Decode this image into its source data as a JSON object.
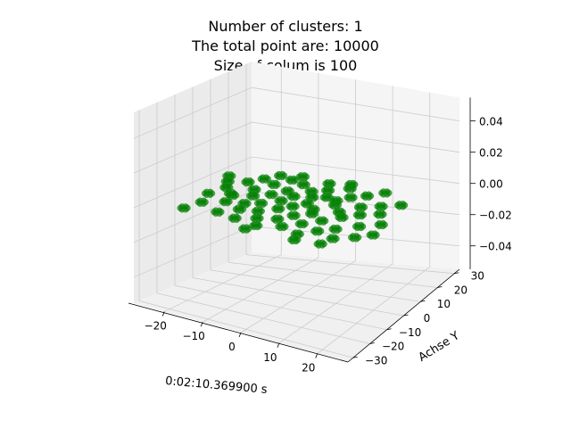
{
  "chart_data": {
    "type": "scatter",
    "projection": "3d",
    "title_lines": [
      "Number of clusters: 1",
      "The total point are: 10000",
      "Size of colum is 100"
    ],
    "xlabel": "0:02:10.369900 s",
    "ylabel": "Achse Y",
    "zlabel": "",
    "xlim": [
      -28,
      28
    ],
    "ylim": [
      -33,
      33
    ],
    "zlim": [
      -0.055,
      0.055
    ],
    "x_ticks": [
      "−20",
      "−10",
      "0",
      "10",
      "20"
    ],
    "x_tick_values": [
      -20,
      -10,
      0,
      10,
      20
    ],
    "y_ticks": [
      "−30",
      "−20",
      "−10",
      "0",
      "10",
      "20",
      "30"
    ],
    "y_tick_values": [
      -30,
      -20,
      -10,
      0,
      10,
      20,
      30
    ],
    "z_ticks": [
      "−0.04",
      "−0.02",
      "0.00",
      "0.02",
      "0.04"
    ],
    "z_tick_values": [
      -0.04,
      -0.02,
      0.0,
      0.02,
      0.04
    ],
    "grid": true,
    "point_color": "#008000",
    "pane_color": "#f2f2f2",
    "grid_color": "#cccccc",
    "series": [
      {
        "z": 0,
        "points": [
          [
            -24,
            12
          ],
          [
            -22,
            7
          ],
          [
            -21,
            -6
          ],
          [
            -20,
            2
          ],
          [
            -19,
            -14
          ],
          [
            -18,
            10
          ],
          [
            -17,
            -2
          ],
          [
            -16,
            15
          ],
          [
            -15,
            -9
          ],
          [
            -14,
            5
          ],
          [
            -13,
            -18
          ],
          [
            -12,
            12
          ],
          [
            -12,
            0
          ],
          [
            -11,
            -7
          ],
          [
            -10,
            18
          ],
          [
            -10,
            -12
          ],
          [
            -9,
            4
          ],
          [
            -8,
            -4
          ],
          [
            -8,
            -19
          ],
          [
            -7,
            9
          ],
          [
            -6,
            -10
          ],
          [
            -6,
            16
          ],
          [
            -5,
            1
          ],
          [
            -4,
            -15
          ],
          [
            -4,
            6
          ],
          [
            -3,
            -5
          ],
          [
            -2,
            12
          ],
          [
            -2,
            -20
          ],
          [
            -1,
            -1
          ],
          [
            0,
            8
          ],
          [
            0,
            -12
          ],
          [
            1,
            15
          ],
          [
            1,
            3
          ],
          [
            2,
            -7
          ],
          [
            3,
            -16
          ],
          [
            3,
            10
          ],
          [
            4,
            0
          ],
          [
            5,
            -3
          ],
          [
            5,
            19
          ],
          [
            6,
            -11
          ],
          [
            7,
            6
          ],
          [
            8,
            -18
          ],
          [
            8,
            13
          ],
          [
            9,
            -6
          ],
          [
            10,
            2
          ],
          [
            11,
            16
          ],
          [
            11,
            -13
          ],
          [
            12,
            -1
          ],
          [
            13,
            8
          ],
          [
            14,
            -9
          ],
          [
            14,
            20
          ],
          [
            15,
            3
          ],
          [
            16,
            -15
          ],
          [
            17,
            11
          ],
          [
            18,
            -4
          ],
          [
            19,
            6
          ],
          [
            20,
            -11
          ],
          [
            21,
            14
          ],
          [
            22,
            0
          ],
          [
            23,
            -7
          ],
          [
            -20,
            -22
          ],
          [
            -14,
            20
          ],
          [
            -9,
            22
          ],
          [
            -3,
            -24
          ],
          [
            4,
            22
          ],
          [
            9,
            -22
          ],
          [
            15,
            -20
          ],
          [
            -16,
            -3
          ],
          [
            6,
            9
          ],
          [
            -1,
            20
          ]
        ]
      }
    ]
  }
}
